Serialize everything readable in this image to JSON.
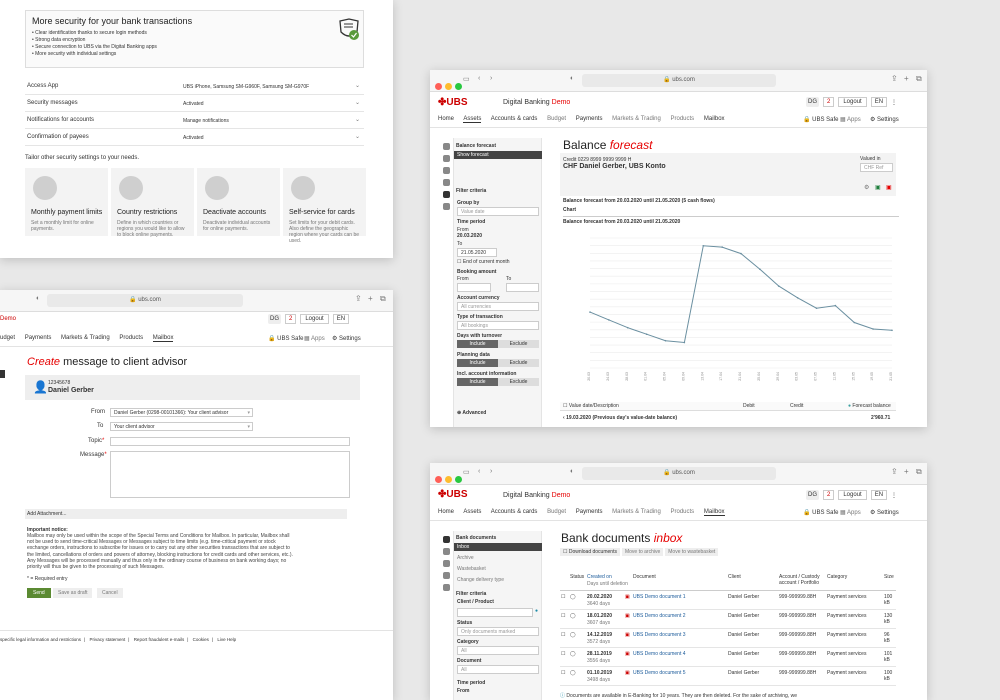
{
  "security": {
    "box_title": "More security for your bank transactions",
    "bullets": [
      "Clear identification thanks to secure login methods",
      "Strong data encryption",
      "Secure connection to UBS via the Digital Banking apps",
      "More security with individual settings"
    ],
    "rows": [
      {
        "label": "Access App",
        "value": "UBS iPhone, Samsung SM-G960F, Samsung SM-G970F"
      },
      {
        "label": "Security messages",
        "value": "Activated"
      },
      {
        "label": "Notifications for accounts",
        "value": "Manage notifications"
      },
      {
        "label": "Confirmation of payees",
        "value": "Activated"
      }
    ],
    "tailor": "Tailor other security settings to your needs.",
    "tiles": [
      {
        "title": "Monthly payment limits",
        "desc": "Set a monthly limit for online payments."
      },
      {
        "title": "Country restrictions",
        "desc": "Define in which countries or regions you would like to allow to block online payments."
      },
      {
        "title": "Deactivate accounts",
        "desc": "Deactivate individual accounts for online payments."
      },
      {
        "title": "Self-service for cards",
        "desc": "Set limits for your debit cards. Also define the geographic region where your cards can be used."
      }
    ]
  },
  "url": "ubs.com",
  "header": {
    "app": "Digital Banking",
    "demo": "Demo",
    "initials": "DG",
    "logout": "Logout",
    "lang": "EN",
    "mail_count": "2",
    "ubs_safe": "UBS Safe",
    "apps": "Apps",
    "settings": "Settings"
  },
  "nav": [
    "Home",
    "Assets",
    "Accounts & cards",
    "Budget",
    "Payments",
    "Markets & Trading",
    "Products",
    "Mailbox"
  ],
  "message": {
    "nav": [
      "udget",
      "Payments",
      "Markets & Trading",
      "Products",
      "Mailbox"
    ],
    "title_em": "Create",
    "title_rest": " message to client advisor",
    "client_no": "12345678",
    "client_name": "Daniel Gerber",
    "from_label": "From",
    "from_value": "Daniel Gerber (0298-00101366): Your client advisor",
    "to_label": "To",
    "to_value": "Your client advisor",
    "topic_label": "Topic",
    "message_label": "Message",
    "attach": "Add Attachment...",
    "notice_title": "Important notice:",
    "notice": "Mailbox may only be used within the scope of the Special Terms and Conditions for Mailbox. In particular, Mailbox shall not be used to send time-critical Messages or Messages subject to time limits (e.g. time-critical payment or stock exchange orders, instructions to subscribe for issues or to carry out any other securities transactions that are subject to the limited, cancellations of orders and powers of attorney, blocking instructions for credit cards and other services, etc.). Any Messages will be processed manually and thus only in the ordinary course of business on bank working days; no priority will thus be given to the processing of such Messages.",
    "required": "* = Required entry",
    "send": "Send",
    "draft": "Save as draft",
    "cancel": "Cancel",
    "footer": [
      "specific legal information and restrictions",
      "Privacy statement",
      "Report fraudulent e-mails",
      "Cookies",
      "Live Help"
    ]
  },
  "forecast": {
    "side_title": "Balance forecast",
    "side_active": "Show forecast",
    "filter": "Filter criteria",
    "group_by": "Group by",
    "group_val": "Value date",
    "time_period": "Time period",
    "from": "From",
    "from_val": "20.03.2020",
    "to": "To",
    "to_val": "21.05.2020",
    "end_month": "End of current month",
    "booking": "Booking amount",
    "from2": "From",
    "to2": "To",
    "currency": "Account currency",
    "currency_val": "All currencies",
    "type": "Type of transaction",
    "type_val": "All bookings",
    "turnover": "Days with turnover",
    "planning": "Planning data",
    "incl_info": "Incl. account information",
    "include": "Include",
    "exclude": "Exclude",
    "advanced": "Advanced",
    "title_a": "Balance",
    "title_b": "forecast",
    "account_no": "Credit 0229 8999 9999 9999 H",
    "account_name": "CHF Daniel Gerber, UBS Konto",
    "valued_in": "Valued in",
    "valued_val": "CHF Ref",
    "range1": "Balance forecast from 20.03.2020 until 21.05.2020 (5 cash flows)",
    "chart_tab": "Chart",
    "range2": "Balance forecast from 20.03.2020 until 21.05.2020",
    "cols": [
      "Value date/Description",
      "Debit",
      "Credit",
      "Forecast balance"
    ],
    "row_text": "19.03.2020 (Previous day's value-date balance)",
    "row_value": "2'960.71"
  },
  "chart_data": {
    "type": "line",
    "x": [
      "20.03",
      "24.03",
      "28.03",
      "01.04",
      "05.04",
      "09.04",
      "13.04",
      "17.04",
      "21.04",
      "25.04",
      "29.04",
      "03.05",
      "07.05",
      "11.05",
      "15.05",
      "19.05",
      "21.05"
    ],
    "series": [
      {
        "values": [
          4150,
          3850,
          3550,
          3300,
          3050,
          2980,
          6700,
          6650,
          6400,
          5800,
          5150,
          4700,
          4300,
          4400,
          3750,
          3500,
          3450
        ]
      }
    ]
  },
  "inbox": {
    "title_a": "Bank documents",
    "title_b": "inbox",
    "side_title": "Bank documents",
    "side_items": [
      "Inbox",
      "Archive",
      "Wastebasket",
      "Change delivery type"
    ],
    "filter": "Filter criteria",
    "client": "Client / Product",
    "status": "Status",
    "status_val": "Only documents marked",
    "category": "Category",
    "category_val": "All",
    "document": "Document",
    "document_val": "All",
    "time": "Time period",
    "from": "From",
    "actions": [
      "Download documents",
      "Move to archive",
      "Move to wastebasket"
    ],
    "cols": [
      "Status",
      "Created on",
      "Document",
      "Client",
      "Account / Custody account / Portfolio",
      "Category",
      "Size"
    ],
    "subcol": "Days until deletion",
    "rows": [
      {
        "date": "20.02.2020",
        "days": "3640 days",
        "doc": "UBS Demo document 1",
        "client": "Daniel Gerber",
        "acct": "999-999999.88H",
        "cat": "Payment services",
        "size": "100 kB"
      },
      {
        "date": "18.01.2020",
        "days": "3607 days",
        "doc": "UBS Demo document 2",
        "client": "Daniel Gerber",
        "acct": "999-999999.88H",
        "cat": "Payment services",
        "size": "130 kB"
      },
      {
        "date": "14.12.2019",
        "days": "3572 days",
        "doc": "UBS Demo document 3",
        "client": "Daniel Gerber",
        "acct": "999-999999.88H",
        "cat": "Payment services",
        "size": "96 kB"
      },
      {
        "date": "28.11.2019",
        "days": "3556 days",
        "doc": "UBS Demo document 4",
        "client": "Daniel Gerber",
        "acct": "999-999999.88H",
        "cat": "Payment services",
        "size": "101 kB"
      },
      {
        "date": "01.10.2019",
        "days": "3498 days",
        "doc": "UBS Demo document 5",
        "client": "Daniel Gerber",
        "acct": "999-999999.88H",
        "cat": "Payment services",
        "size": "100 kB"
      }
    ],
    "note": "Documents are available in E-Banking for 10 years. They are then deleted. For the sake of archiving, we"
  }
}
